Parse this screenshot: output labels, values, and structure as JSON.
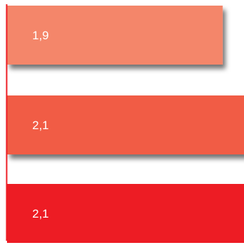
{
  "chart_data": {
    "type": "bar",
    "orientation": "horizontal",
    "title": "",
    "xlabel": "",
    "ylabel": "",
    "xlim": [
      0,
      2.1
    ],
    "grid": false,
    "legend": "none",
    "bars": [
      {
        "value": 1.9,
        "label": "1,9",
        "color": "#F4866A"
      },
      {
        "value": 2.1,
        "label": "2,1",
        "color": "#F15B45"
      },
      {
        "value": 2.1,
        "label": "2,1",
        "color": "#ED1C24"
      }
    ],
    "colors": {
      "axis": "#ED1C24",
      "shadow": "#000000"
    }
  }
}
